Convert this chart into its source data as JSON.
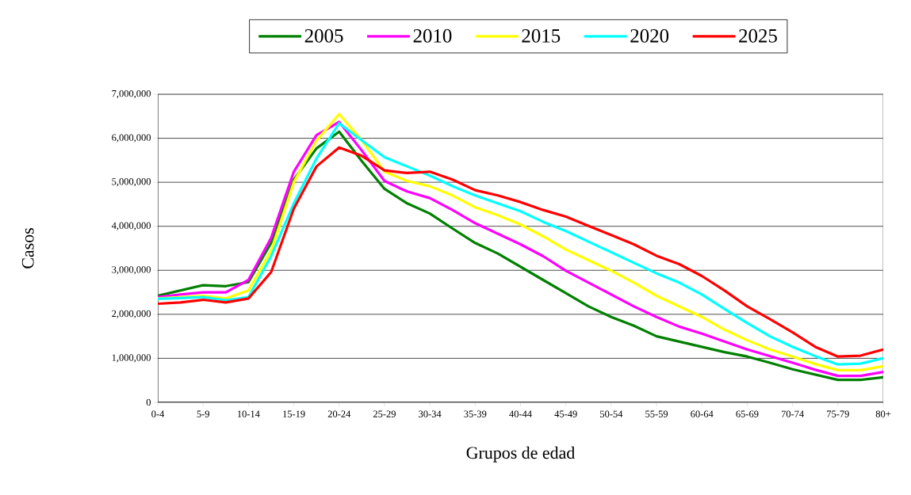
{
  "chart_data": {
    "type": "line",
    "xlabel": "Grupos de edad",
    "ylabel": "Casos",
    "categories": [
      "0-4",
      null,
      "5-9",
      null,
      "10-14",
      null,
      "15-19",
      null,
      "20-24",
      null,
      "25-29",
      null,
      "30-34",
      null,
      "35-39",
      null,
      "40-44",
      null,
      "45-49",
      null,
      "50-54",
      null,
      "55-59",
      null,
      "60-64",
      null,
      "65-69",
      null,
      "70-74",
      null,
      "75-79",
      null,
      "80+"
    ],
    "ylim": [
      0,
      7000000
    ],
    "yticks": [
      {
        "value": 0,
        "label": "0"
      },
      {
        "value": 1000000,
        "label": "1,000,000"
      },
      {
        "value": 2000000,
        "label": "2,000,000"
      },
      {
        "value": 3000000,
        "label": "3,000,000"
      },
      {
        "value": 4000000,
        "label": "4,000,000"
      },
      {
        "value": 5000000,
        "label": "5,000,000"
      },
      {
        "value": 6000000,
        "label": "6,000,000"
      },
      {
        "value": 7000000,
        "label": "7,000,000"
      }
    ],
    "grid": "y",
    "legend": "top",
    "marker": "none",
    "line_style": "solid",
    "series": [
      {
        "name": "2005",
        "color": "#008000",
        "values": [
          2420000,
          2540000,
          2660000,
          2640000,
          2730000,
          3620000,
          5060000,
          5770000,
          6150000,
          5480000,
          4850000,
          4520000,
          4290000,
          3950000,
          3620000,
          3380000,
          3080000,
          2780000,
          2480000,
          2180000,
          1940000,
          1740000,
          1500000,
          1380000,
          1260000,
          1140000,
          1040000,
          900000,
          750000,
          630000,
          510000,
          510000,
          570000
        ]
      },
      {
        "name": "2010",
        "color": "#ff00ff",
        "values": [
          2390000,
          2450000,
          2500000,
          2500000,
          2780000,
          3740000,
          5240000,
          6070000,
          6370000,
          5720000,
          5030000,
          4790000,
          4640000,
          4370000,
          4070000,
          3830000,
          3590000,
          3320000,
          2990000,
          2720000,
          2450000,
          2180000,
          1940000,
          1720000,
          1560000,
          1380000,
          1200000,
          1050000,
          900000,
          740000,
          600000,
          600000,
          690000
        ]
      },
      {
        "name": "2015",
        "color": "#ffff00",
        "values": [
          2360000,
          2390000,
          2420000,
          2360000,
          2540000,
          3440000,
          5000000,
          5950000,
          6550000,
          5950000,
          5240000,
          5030000,
          4910000,
          4700000,
          4430000,
          4250000,
          4040000,
          3770000,
          3470000,
          3230000,
          2990000,
          2720000,
          2420000,
          2180000,
          1940000,
          1650000,
          1410000,
          1200000,
          1040000,
          870000,
          730000,
          730000,
          820000
        ]
      },
      {
        "name": "2020",
        "color": "#00ffff",
        "values": [
          2350000,
          2370000,
          2390000,
          2320000,
          2390000,
          3320000,
          4520000,
          5540000,
          6340000,
          5950000,
          5570000,
          5360000,
          5150000,
          4910000,
          4700000,
          4520000,
          4340000,
          4100000,
          3890000,
          3650000,
          3410000,
          3170000,
          2930000,
          2720000,
          2450000,
          2120000,
          1800000,
          1500000,
          1260000,
          1050000,
          860000,
          880000,
          1000000
        ]
      },
      {
        "name": "2025",
        "color": "#ff0000",
        "values": [
          2240000,
          2270000,
          2330000,
          2270000,
          2360000,
          2960000,
          4400000,
          5360000,
          5790000,
          5600000,
          5270000,
          5210000,
          5240000,
          5060000,
          4820000,
          4700000,
          4550000,
          4370000,
          4220000,
          4010000,
          3800000,
          3590000,
          3330000,
          3140000,
          2870000,
          2540000,
          2180000,
          1890000,
          1590000,
          1260000,
          1040000,
          1060000,
          1200000
        ]
      }
    ]
  }
}
